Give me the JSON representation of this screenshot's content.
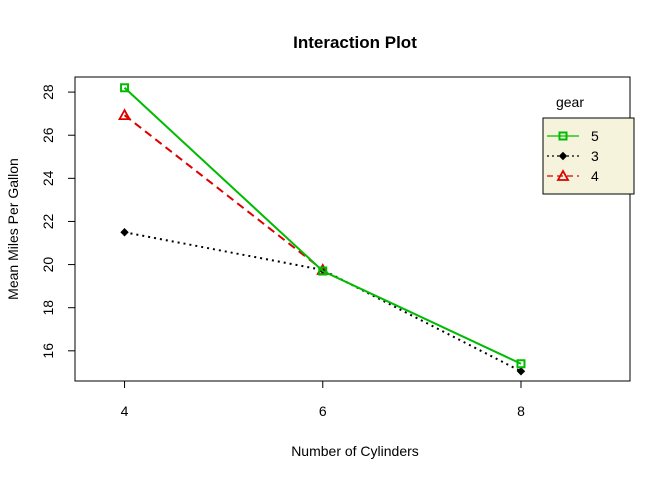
{
  "chart_data": {
    "type": "line",
    "title": "Interaction Plot",
    "xlabel": "Number of Cylinders",
    "ylabel": "Mean Miles Per Gallon",
    "categories": [
      "4",
      "6",
      "8"
    ],
    "x": [
      4,
      6,
      8
    ],
    "xlim": [
      3.5,
      9.1
    ],
    "ylim": [
      14.6,
      28.7
    ],
    "yticks": [
      16,
      18,
      20,
      22,
      24,
      26,
      28
    ],
    "legend": {
      "title": "gear",
      "placement": "top-right",
      "background": "#f5f3dc",
      "order": [
        "5",
        "3",
        "4"
      ]
    },
    "series": [
      {
        "name": "3",
        "values": [
          21.5,
          19.75,
          15.05
        ],
        "color": "#000000",
        "dash": "dotted",
        "marker": "filled-diamond"
      },
      {
        "name": "4",
        "values": [
          26.93,
          19.75,
          null
        ],
        "color": "#dd0000",
        "dash": "dashed",
        "marker": "open-triangle"
      },
      {
        "name": "5",
        "values": [
          28.2,
          19.7,
          15.4
        ],
        "color": "#00bb00",
        "dash": "solid",
        "marker": "open-square"
      }
    ]
  }
}
